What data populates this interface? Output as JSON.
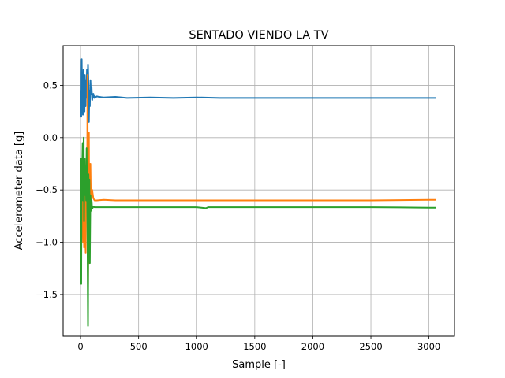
{
  "chart_data": {
    "type": "line",
    "title": "SENTADO VIENDO LA TV",
    "xlabel": "Sample [-]",
    "ylabel": "Accelerometer data [g]",
    "xlim": [
      -150,
      3220
    ],
    "ylim": [
      -1.9,
      0.88
    ],
    "x_ticks": [
      0,
      500,
      1000,
      1500,
      2000,
      2500,
      3000
    ],
    "x_tick_labels": [
      "0",
      "500",
      "1000",
      "1500",
      "2000",
      "2500",
      "3000"
    ],
    "y_ticks": [
      -1.5,
      -1.0,
      -0.5,
      0.0,
      0.5
    ],
    "y_tick_labels": [
      "−1.5",
      "−1.0",
      "−0.5",
      "0.0",
      "0.5"
    ],
    "grid": true,
    "legend": "none",
    "series": [
      {
        "color": "#1f77b4",
        "x": [
          0,
          2,
          4,
          6,
          8,
          10,
          12,
          14,
          16,
          18,
          20,
          22,
          25,
          28,
          31,
          34,
          37,
          40,
          43,
          46,
          50,
          55,
          60,
          64,
          68,
          72,
          76,
          80,
          85,
          90,
          95,
          100,
          110,
          120,
          140,
          160,
          200,
          300,
          400,
          600,
          800,
          1000,
          1200,
          1500,
          2000,
          2500,
          3000,
          3060
        ],
        "y": [
          0.4,
          0.3,
          0.45,
          0.2,
          0.6,
          0.75,
          0.5,
          0.3,
          0.55,
          0.4,
          0.22,
          0.5,
          0.65,
          0.35,
          0.5,
          0.25,
          0.6,
          0.45,
          0.3,
          0.55,
          0.38,
          0.65,
          0.45,
          0.7,
          0.5,
          0.15,
          0.45,
          0.3,
          0.55,
          0.42,
          0.48,
          0.36,
          0.42,
          0.38,
          0.395,
          0.39,
          0.385,
          0.39,
          0.38,
          0.385,
          0.38,
          0.385,
          0.38,
          0.38,
          0.38,
          0.38,
          0.38,
          0.38
        ]
      },
      {
        "color": "#ff7f0e",
        "x": [
          0,
          3,
          6,
          9,
          12,
          15,
          18,
          21,
          24,
          27,
          30,
          33,
          36,
          40,
          44,
          48,
          52,
          56,
          60,
          64,
          68,
          72,
          76,
          80,
          85,
          90,
          95,
          100,
          110,
          120,
          140,
          200,
          300,
          500,
          800,
          1000,
          1500,
          2000,
          2500,
          3000,
          3060
        ],
        "y": [
          -0.85,
          -1.1,
          -0.7,
          -0.9,
          -0.5,
          -0.4,
          -0.85,
          -1.0,
          -0.6,
          -0.75,
          -1.05,
          -0.5,
          -0.35,
          -0.95,
          -1.1,
          -0.4,
          -0.2,
          -0.55,
          0.6,
          -1.45,
          -0.7,
          0.05,
          -1.2,
          -0.45,
          -0.25,
          -0.65,
          -0.55,
          -0.5,
          -0.58,
          -0.6,
          -0.6,
          -0.595,
          -0.6,
          -0.6,
          -0.6,
          -0.6,
          -0.6,
          -0.6,
          -0.6,
          -0.595,
          -0.595
        ]
      },
      {
        "color": "#2ca02c",
        "x": [
          0,
          3,
          6,
          9,
          12,
          15,
          18,
          21,
          24,
          27,
          30,
          33,
          36,
          40,
          44,
          48,
          52,
          56,
          60,
          64,
          68,
          72,
          76,
          80,
          85,
          90,
          95,
          100,
          110,
          120,
          140,
          200,
          300,
          500,
          800,
          1000,
          1080,
          1100,
          1200,
          1500,
          2000,
          2500,
          3000,
          3060
        ],
        "y": [
          -0.4,
          -0.2,
          -1.4,
          -0.3,
          -0.55,
          -0.25,
          -0.05,
          -0.6,
          -0.35,
          0.0,
          -0.8,
          -0.4,
          -0.2,
          -0.55,
          -0.3,
          -0.6,
          -0.1,
          -0.5,
          -1.0,
          -1.8,
          -0.35,
          -0.6,
          -0.4,
          -1.2,
          -0.55,
          -0.7,
          -0.6,
          -0.68,
          -0.66,
          -0.665,
          -0.665,
          -0.665,
          -0.665,
          -0.665,
          -0.665,
          -0.665,
          -0.675,
          -0.665,
          -0.665,
          -0.665,
          -0.665,
          -0.665,
          -0.67,
          -0.67
        ]
      }
    ]
  }
}
